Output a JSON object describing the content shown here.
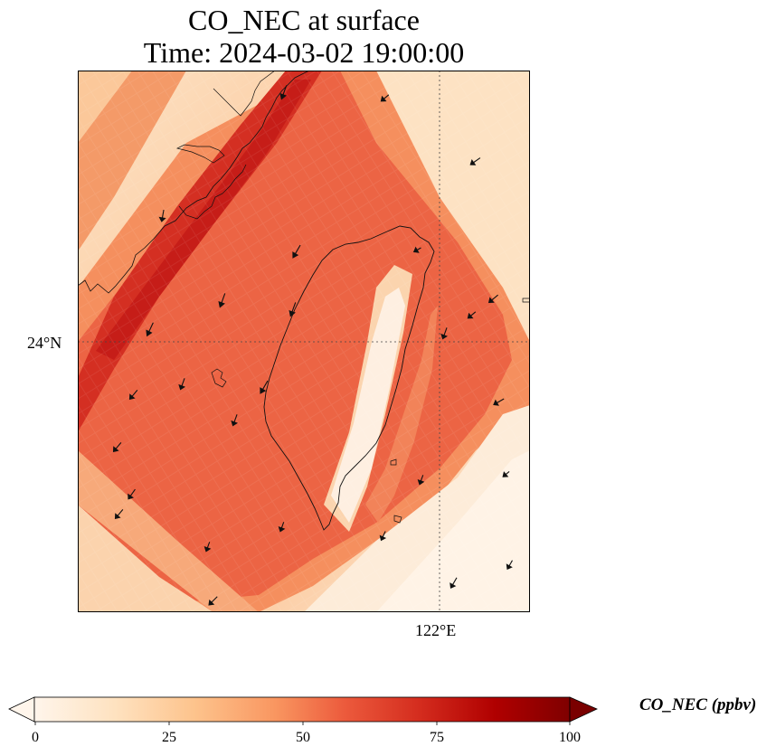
{
  "title": {
    "line1": "CO_NEC at surface",
    "line2": "Time: 2024-03-02 19:00:00"
  },
  "map": {
    "lat_label": "24°N",
    "lon_label": "122°E",
    "field_colors": {
      "low": "#fff5eb",
      "light": "#fee6ce",
      "pale": "#fdd0a2",
      "mid": "#fdae6b",
      "orange": "#f47a4f",
      "red": "#e24a33",
      "dark_red": "#c7201b"
    }
  },
  "colorbar": {
    "label": "CO_NEC (ppbv)",
    "ticks": [
      "0",
      "25",
      "50",
      "75",
      "100"
    ],
    "tick_values": [
      0,
      25,
      50,
      75,
      100
    ],
    "min": 0,
    "max": 100,
    "extend": "both",
    "colormap": "OrRd-like",
    "colors": [
      "#fff5eb",
      "#fee2c0",
      "#fdc38c",
      "#f99660",
      "#ec5a3c",
      "#d42c1e",
      "#b00000",
      "#7a0000"
    ]
  }
}
